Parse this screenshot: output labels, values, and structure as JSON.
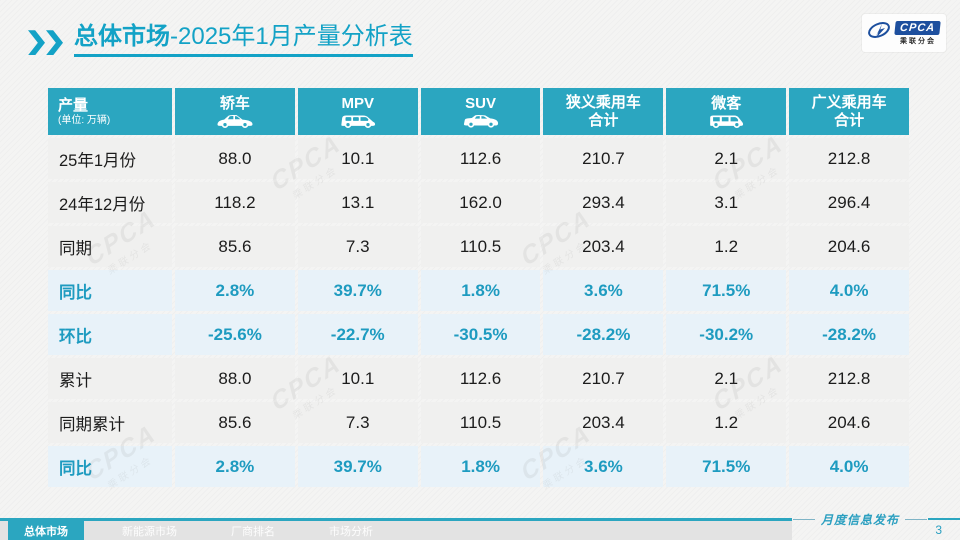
{
  "header": {
    "title_primary": "总体市场",
    "title_secondary": "-2025年1月产量分析表"
  },
  "logo": {
    "acronym": "CPCA",
    "name": "乘联分会"
  },
  "table": {
    "corner": {
      "title": "产量",
      "unit": "(单位: 万辆)"
    },
    "columns": [
      {
        "label": "轿车",
        "icon": "sedan-icon"
      },
      {
        "label": "MPV",
        "icon": "mpv-icon"
      },
      {
        "label": "SUV",
        "icon": "suv-icon"
      },
      {
        "label": "狭义乘用车\n合计",
        "icon": null
      },
      {
        "label": "微客",
        "icon": "microvan-icon"
      },
      {
        "label": "广义乘用车\n合计",
        "icon": null
      }
    ],
    "rows": [
      {
        "label": "25年1月份",
        "type": "data",
        "values": [
          "88.0",
          "10.1",
          "112.6",
          "210.7",
          "2.1",
          "212.8"
        ]
      },
      {
        "label": "24年12月份",
        "type": "data",
        "values": [
          "118.2",
          "13.1",
          "162.0",
          "293.4",
          "3.1",
          "296.4"
        ]
      },
      {
        "label": "同期",
        "type": "data",
        "values": [
          "85.6",
          "7.3",
          "110.5",
          "203.4",
          "1.2",
          "204.6"
        ]
      },
      {
        "label": "同比",
        "type": "percent",
        "values": [
          "2.8%",
          "39.7%",
          "1.8%",
          "3.6%",
          "71.5%",
          "4.0%"
        ]
      },
      {
        "label": "环比",
        "type": "percent",
        "values": [
          "-25.6%",
          "-22.7%",
          "-30.5%",
          "-28.2%",
          "-30.2%",
          "-28.2%"
        ]
      },
      {
        "label": "累计",
        "type": "data",
        "values": [
          "88.0",
          "10.1",
          "112.6",
          "210.7",
          "2.1",
          "212.8"
        ]
      },
      {
        "label": "同期累计",
        "type": "data",
        "values": [
          "85.6",
          "7.3",
          "110.5",
          "203.4",
          "1.2",
          "204.6"
        ]
      },
      {
        "label": "同比",
        "type": "percent",
        "values": [
          "2.8%",
          "39.7%",
          "1.8%",
          "3.6%",
          "71.5%",
          "4.0%"
        ]
      }
    ]
  },
  "footer": {
    "tabs": [
      {
        "label": "总体市场",
        "active": true
      },
      {
        "label": "新能源市场",
        "active": false
      },
      {
        "label": "厂商排名",
        "active": false
      },
      {
        "label": "市场分析",
        "active": false
      }
    ],
    "note": "月度信息发布",
    "page_number": "3"
  },
  "watermark": {
    "text": "CPCA",
    "subtext": "乘联分会"
  },
  "colors": {
    "accent_teal": "#13a2c6",
    "table_header_bg": "#2ba6c0",
    "highlight_row_bg": "#e8f2f9",
    "row_bg": "#f0f0ef",
    "percent_text": "#1e9bc0",
    "logo_blue": "#1d4f9e"
  }
}
